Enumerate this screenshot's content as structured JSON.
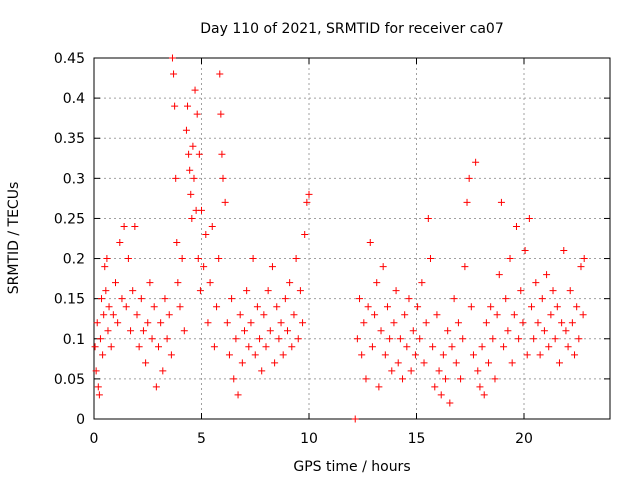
{
  "chart_data": {
    "type": "scatter",
    "title": "Day 110 of 2021, SRMTID for receiver ca07",
    "xlabel": "GPS time / hours",
    "ylabel": "SRMTID / TECUs",
    "xlim": [
      0,
      24
    ],
    "ylim": [
      0,
      0.45
    ],
    "xticks": [
      0,
      5,
      10,
      15,
      20
    ],
    "xtick_labels": [
      "0",
      "5",
      "10",
      "15",
      "20"
    ],
    "yticks": [
      0,
      0.05,
      0.1,
      0.15,
      0.2,
      0.25,
      0.3,
      0.35,
      0.4,
      0.45
    ],
    "ytick_labels": [
      "0",
      "0.05",
      "0.1",
      "0.15",
      "0.2",
      "0.25",
      "0.3",
      "0.35",
      "0.4",
      "0.45"
    ],
    "grid": true,
    "marker": "+",
    "color": "#ff0000",
    "series": [
      {
        "name": "SRMTID",
        "points": [
          [
            0.05,
            0.09
          ],
          [
            0.1,
            0.06
          ],
          [
            0.15,
            0.12
          ],
          [
            0.2,
            0.04
          ],
          [
            0.25,
            0.03
          ],
          [
            0.3,
            0.1
          ],
          [
            0.35,
            0.15
          ],
          [
            0.4,
            0.08
          ],
          [
            0.45,
            0.13
          ],
          [
            0.5,
            0.19
          ],
          [
            0.55,
            0.16
          ],
          [
            0.6,
            0.2
          ],
          [
            0.65,
            0.11
          ],
          [
            0.7,
            0.14
          ],
          [
            0.8,
            0.09
          ],
          [
            0.9,
            0.13
          ],
          [
            1.0,
            0.17
          ],
          [
            1.1,
            0.12
          ],
          [
            1.2,
            0.22
          ],
          [
            1.3,
            0.15
          ],
          [
            1.4,
            0.24
          ],
          [
            1.5,
            0.14
          ],
          [
            1.6,
            0.2
          ],
          [
            1.7,
            0.11
          ],
          [
            1.8,
            0.16
          ],
          [
            1.9,
            0.24
          ],
          [
            2.0,
            0.13
          ],
          [
            2.1,
            0.09
          ],
          [
            2.2,
            0.15
          ],
          [
            2.3,
            0.11
          ],
          [
            2.4,
            0.07
          ],
          [
            2.5,
            0.12
          ],
          [
            2.6,
            0.17
          ],
          [
            2.7,
            0.1
          ],
          [
            2.8,
            0.14
          ],
          [
            2.9,
            0.04
          ],
          [
            3.0,
            0.09
          ],
          [
            3.1,
            0.12
          ],
          [
            3.2,
            0.06
          ],
          [
            3.3,
            0.15
          ],
          [
            3.4,
            0.1
          ],
          [
            3.5,
            0.13
          ],
          [
            3.6,
            0.08
          ],
          [
            3.65,
            0.45
          ],
          [
            3.7,
            0.43
          ],
          [
            3.75,
            0.39
          ],
          [
            3.8,
            0.3
          ],
          [
            3.85,
            0.22
          ],
          [
            3.9,
            0.17
          ],
          [
            4.0,
            0.14
          ],
          [
            4.1,
            0.2
          ],
          [
            4.2,
            0.11
          ],
          [
            4.3,
            0.36
          ],
          [
            4.35,
            0.39
          ],
          [
            4.4,
            0.33
          ],
          [
            4.45,
            0.31
          ],
          [
            4.5,
            0.28
          ],
          [
            4.55,
            0.25
          ],
          [
            4.6,
            0.34
          ],
          [
            4.65,
            0.3
          ],
          [
            4.7,
            0.41
          ],
          [
            4.75,
            0.26
          ],
          [
            4.8,
            0.38
          ],
          [
            4.85,
            0.2
          ],
          [
            4.9,
            0.33
          ],
          [
            4.95,
            0.16
          ],
          [
            5.0,
            0.26
          ],
          [
            5.1,
            0.19
          ],
          [
            5.2,
            0.23
          ],
          [
            5.3,
            0.12
          ],
          [
            5.4,
            0.17
          ],
          [
            5.5,
            0.24
          ],
          [
            5.6,
            0.09
          ],
          [
            5.7,
            0.14
          ],
          [
            5.8,
            0.2
          ],
          [
            5.85,
            0.43
          ],
          [
            5.9,
            0.38
          ],
          [
            5.95,
            0.33
          ],
          [
            6.0,
            0.3
          ],
          [
            6.1,
            0.27
          ],
          [
            6.2,
            0.12
          ],
          [
            6.3,
            0.08
          ],
          [
            6.4,
            0.15
          ],
          [
            6.5,
            0.05
          ],
          [
            6.6,
            0.1
          ],
          [
            6.7,
            0.03
          ],
          [
            6.8,
            0.13
          ],
          [
            6.9,
            0.07
          ],
          [
            7.0,
            0.11
          ],
          [
            7.1,
            0.16
          ],
          [
            7.2,
            0.09
          ],
          [
            7.3,
            0.12
          ],
          [
            7.4,
            0.2
          ],
          [
            7.5,
            0.08
          ],
          [
            7.6,
            0.14
          ],
          [
            7.7,
            0.1
          ],
          [
            7.8,
            0.06
          ],
          [
            7.9,
            0.13
          ],
          [
            8.0,
            0.09
          ],
          [
            8.1,
            0.16
          ],
          [
            8.2,
            0.11
          ],
          [
            8.3,
            0.19
          ],
          [
            8.4,
            0.07
          ],
          [
            8.5,
            0.14
          ],
          [
            8.6,
            0.1
          ],
          [
            8.7,
            0.12
          ],
          [
            8.8,
            0.08
          ],
          [
            8.9,
            0.15
          ],
          [
            9.0,
            0.11
          ],
          [
            9.1,
            0.17
          ],
          [
            9.2,
            0.09
          ],
          [
            9.3,
            0.13
          ],
          [
            9.4,
            0.2
          ],
          [
            9.5,
            0.1
          ],
          [
            9.6,
            0.16
          ],
          [
            9.7,
            0.12
          ],
          [
            9.8,
            0.23
          ],
          [
            9.9,
            0.27
          ],
          [
            10.0,
            0.28
          ],
          [
            12.15,
            0.0
          ],
          [
            12.25,
            0.1
          ],
          [
            12.35,
            0.15
          ],
          [
            12.45,
            0.08
          ],
          [
            12.55,
            0.12
          ],
          [
            12.65,
            0.05
          ],
          [
            12.75,
            0.14
          ],
          [
            12.85,
            0.22
          ],
          [
            12.95,
            0.09
          ],
          [
            13.05,
            0.13
          ],
          [
            13.15,
            0.17
          ],
          [
            13.25,
            0.04
          ],
          [
            13.35,
            0.11
          ],
          [
            13.45,
            0.19
          ],
          [
            13.55,
            0.08
          ],
          [
            13.65,
            0.14
          ],
          [
            13.75,
            0.1
          ],
          [
            13.85,
            0.06
          ],
          [
            13.95,
            0.12
          ],
          [
            14.05,
            0.16
          ],
          [
            14.15,
            0.07
          ],
          [
            14.25,
            0.1
          ],
          [
            14.35,
            0.05
          ],
          [
            14.45,
            0.13
          ],
          [
            14.55,
            0.09
          ],
          [
            14.65,
            0.15
          ],
          [
            14.75,
            0.06
          ],
          [
            14.85,
            0.11
          ],
          [
            14.95,
            0.08
          ],
          [
            15.05,
            0.14
          ],
          [
            15.15,
            0.1
          ],
          [
            15.25,
            0.17
          ],
          [
            15.35,
            0.07
          ],
          [
            15.45,
            0.12
          ],
          [
            15.55,
            0.25
          ],
          [
            15.65,
            0.2
          ],
          [
            15.75,
            0.09
          ],
          [
            15.85,
            0.04
          ],
          [
            15.95,
            0.13
          ],
          [
            16.05,
            0.06
          ],
          [
            16.15,
            0.03
          ],
          [
            16.25,
            0.08
          ],
          [
            16.35,
            0.05
          ],
          [
            16.45,
            0.11
          ],
          [
            16.55,
            0.02
          ],
          [
            16.65,
            0.09
          ],
          [
            16.75,
            0.15
          ],
          [
            16.85,
            0.07
          ],
          [
            16.95,
            0.12
          ],
          [
            17.05,
            0.05
          ],
          [
            17.15,
            0.1
          ],
          [
            17.25,
            0.19
          ],
          [
            17.35,
            0.27
          ],
          [
            17.45,
            0.3
          ],
          [
            17.55,
            0.14
          ],
          [
            17.65,
            0.08
          ],
          [
            17.75,
            0.32
          ],
          [
            17.85,
            0.06
          ],
          [
            17.95,
            0.04
          ],
          [
            18.05,
            0.09
          ],
          [
            18.15,
            0.03
          ],
          [
            18.25,
            0.12
          ],
          [
            18.35,
            0.07
          ],
          [
            18.45,
            0.14
          ],
          [
            18.55,
            0.1
          ],
          [
            18.65,
            0.05
          ],
          [
            18.75,
            0.13
          ],
          [
            18.85,
            0.18
          ],
          [
            18.95,
            0.27
          ],
          [
            19.05,
            0.09
          ],
          [
            19.15,
            0.15
          ],
          [
            19.25,
            0.11
          ],
          [
            19.35,
            0.2
          ],
          [
            19.45,
            0.07
          ],
          [
            19.55,
            0.13
          ],
          [
            19.65,
            0.24
          ],
          [
            19.75,
            0.1
          ],
          [
            19.85,
            0.16
          ],
          [
            19.95,
            0.12
          ],
          [
            20.05,
            0.21
          ],
          [
            20.15,
            0.08
          ],
          [
            20.25,
            0.25
          ],
          [
            20.35,
            0.14
          ],
          [
            20.45,
            0.1
          ],
          [
            20.55,
            0.17
          ],
          [
            20.65,
            0.12
          ],
          [
            20.75,
            0.08
          ],
          [
            20.85,
            0.15
          ],
          [
            20.95,
            0.11
          ],
          [
            21.05,
            0.18
          ],
          [
            21.15,
            0.09
          ],
          [
            21.25,
            0.13
          ],
          [
            21.35,
            0.16
          ],
          [
            21.45,
            0.1
          ],
          [
            21.55,
            0.14
          ],
          [
            21.65,
            0.07
          ],
          [
            21.75,
            0.12
          ],
          [
            21.85,
            0.21
          ],
          [
            21.95,
            0.11
          ],
          [
            22.05,
            0.09
          ],
          [
            22.15,
            0.16
          ],
          [
            22.25,
            0.12
          ],
          [
            22.35,
            0.08
          ],
          [
            22.45,
            0.14
          ],
          [
            22.55,
            0.1
          ],
          [
            22.65,
            0.19
          ],
          [
            22.75,
            0.13
          ],
          [
            22.8,
            0.2
          ]
        ]
      }
    ]
  }
}
